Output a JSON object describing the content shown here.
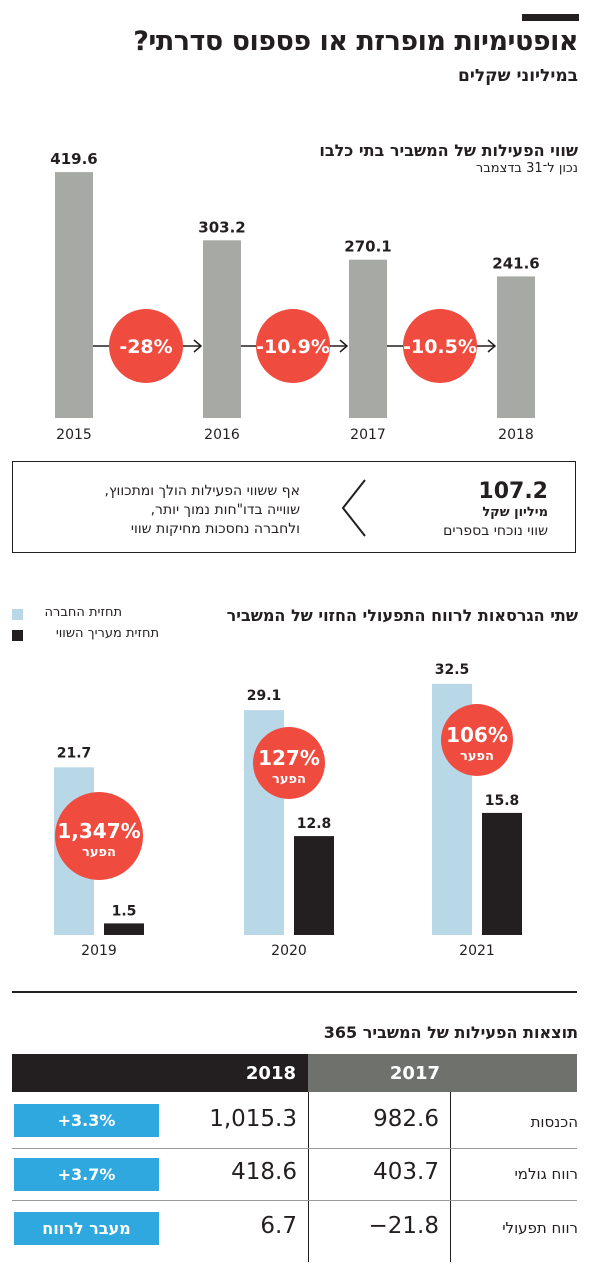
{
  "header": {
    "title": "אופטימיות מופרזת או פספוס סדרתי?",
    "subtitle": "במיליוני שקלים"
  },
  "chart_data": [
    {
      "type": "bar",
      "title": "שווי הפעילות של המשביר בתי כלבו",
      "subtitle": "נכון ל־31 בדצמבר",
      "categories": [
        "2015",
        "2016",
        "2017",
        "2018"
      ],
      "values": [
        419.6,
        303.2,
        270.1,
        241.6
      ],
      "value_labels": [
        "419.6",
        "303.2",
        "270.1",
        "241.6"
      ],
      "changes": [
        "-28%",
        "-10.9%",
        "-10.5%"
      ],
      "color": "#a7a9a4",
      "badge_color": "#ef4b3f",
      "ylim": [
        0,
        430
      ]
    },
    {
      "type": "bar",
      "title": "שתי הגרסאות לרווח התפעולי החזוי של המשביר",
      "categories": [
        "2019",
        "2020",
        "2021"
      ],
      "series": [
        {
          "name": "תחזית החברה",
          "values": [
            21.7,
            29.1,
            32.5
          ],
          "labels": [
            "21.7",
            "29.1",
            "32.5"
          ],
          "color": "#b8d8e8"
        },
        {
          "name": "תחזית מעריך השווי",
          "values": [
            1.5,
            12.8,
            15.8
          ],
          "labels": [
            "1.5",
            "12.8",
            "15.8"
          ],
          "color": "#231f20"
        }
      ],
      "gaps": [
        "1,347%",
        "127%",
        "106%"
      ],
      "gap_label": "הפער",
      "badge_color": "#ef4b3f",
      "ylim": [
        0,
        33
      ]
    },
    {
      "type": "table",
      "title": "תוצאות הפעילות של המשביר 365",
      "columns": [
        "2018",
        "2017"
      ],
      "rows": [
        {
          "label": "הכנסות",
          "v2018": "1,015.3",
          "v2017": "982.6",
          "change": "+3.3%"
        },
        {
          "label": "רווח גולמי",
          "v2018": "418.6",
          "v2017": "403.7",
          "change": "+3.7%"
        },
        {
          "label": "רווח תפעולי",
          "v2018": "6.7",
          "v2017": "−21.8",
          "change": "מעבר לרווח"
        }
      ]
    }
  ],
  "book_value": {
    "value": "107.2",
    "unit": "מיליון שקל",
    "label": "שווי נוכחי בספרים",
    "text_lines": [
      "אף ששווי הפעילות הולך ומתכווץ,",
      "שווייה בדו\"חות נמוך יותר,",
      "ולחברה נחסכות מחיקות שווי"
    ]
  },
  "colors": {
    "accent_red": "#ef4b3f",
    "accent_blue": "#2ea8de",
    "header_dark": "#231f20",
    "header_gray": "#6f716d"
  }
}
